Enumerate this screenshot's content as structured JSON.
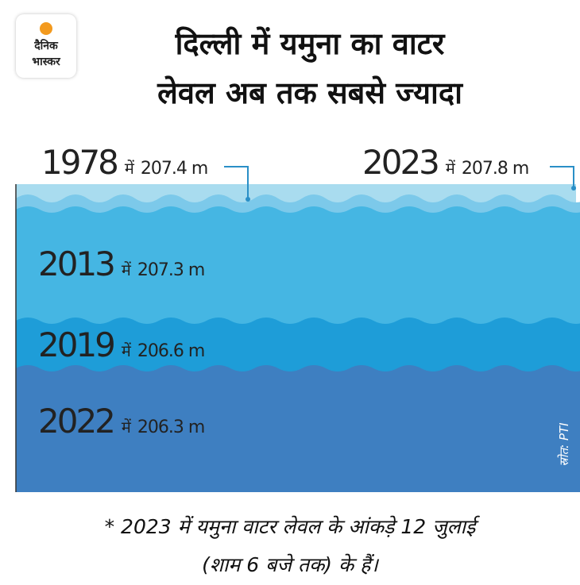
{
  "logo": [
    "दैनिक",
    "भास्कर"
  ],
  "header": {
    "title": [
      "दिल्ली में यमुना का वाटर",
      "लेवल अब तक सबसे ज्यादा"
    ]
  },
  "levels": [
    {
      "year": "1978",
      "word": "में",
      "value": "207.4 m"
    },
    {
      "year": "2023",
      "word": "में",
      "value": "207.8 m"
    },
    {
      "year": "2013",
      "word": "में",
      "value": "207.3 m"
    },
    {
      "year": "2019",
      "word": "में",
      "value": "206.6 m"
    },
    {
      "year": "2022",
      "word": "में",
      "value": "206.3 m"
    }
  ],
  "source": "स्रोत: PTI",
  "footnote": [
    "* 2023 में यमुना वाटर लेवल के आंकड़े 12 जुलाई",
    "(शाम 6 बजे तक) के हैं।"
  ]
}
